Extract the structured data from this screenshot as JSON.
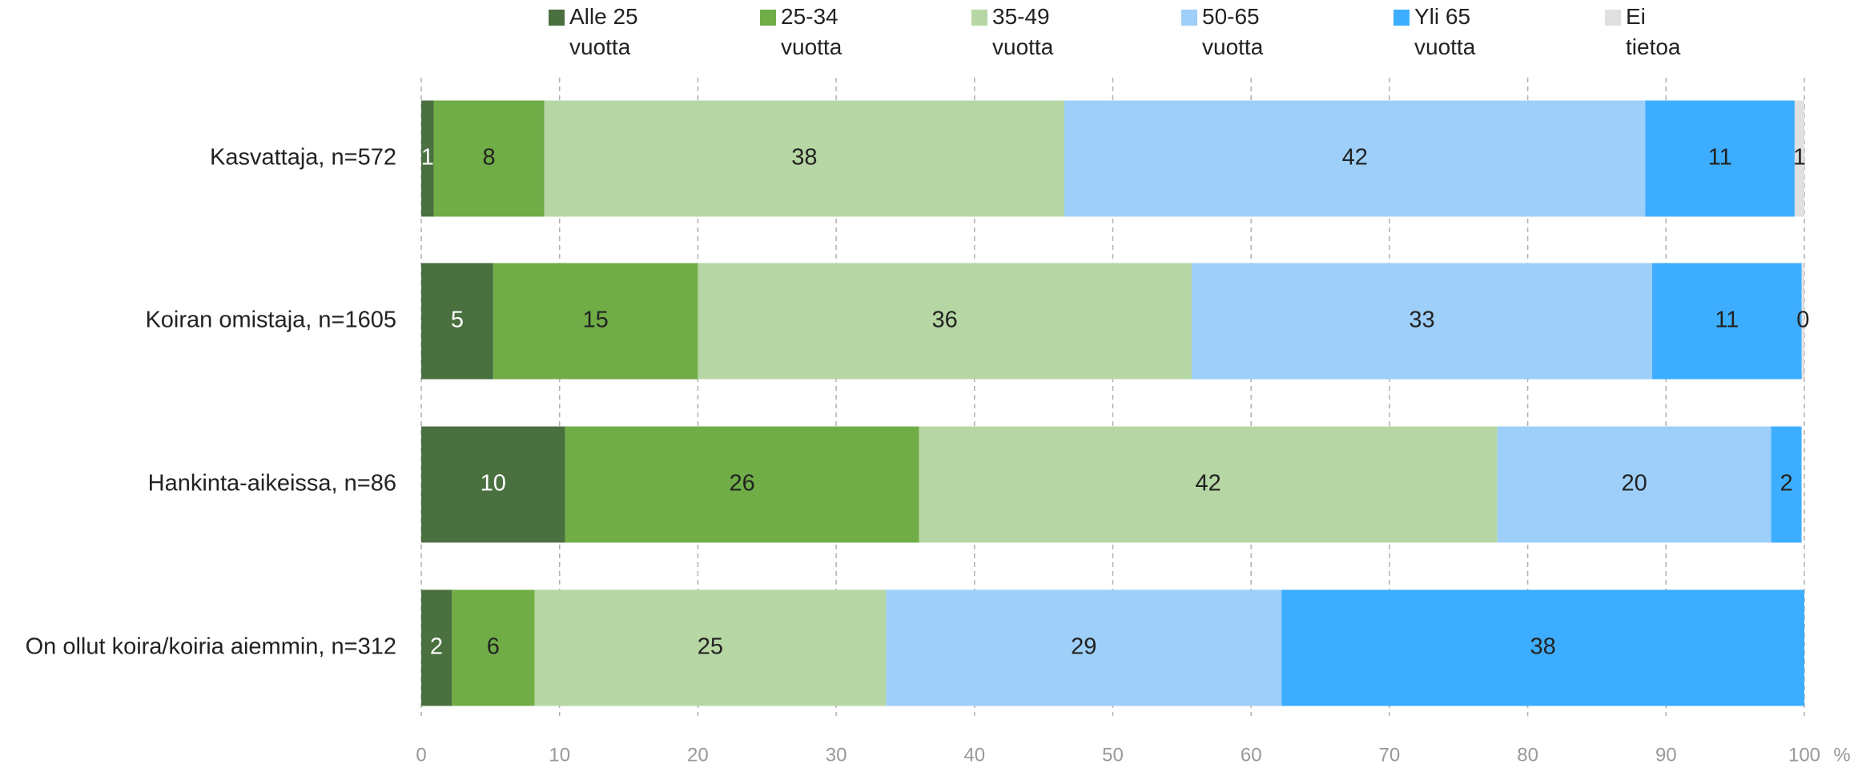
{
  "chart_data": {
    "type": "stacked_barh",
    "categories": [
      "Kasvattaja, n=572",
      "Koiran omistaja, n=1605",
      "Hankinta-aikeissa, n=86",
      "On ollut koira/koiria aiemmin, n=312"
    ],
    "series": [
      {
        "name": "Alle 25 vuotta",
        "color": "#4a7040",
        "values": [
          0.9,
          5.2,
          10.4,
          2.2
        ],
        "value_labels": [
          "1",
          "5",
          "10",
          "2"
        ]
      },
      {
        "name": "25-34 vuotta",
        "color": "#70ad47",
        "values": [
          8.0,
          14.8,
          25.6,
          6.0
        ],
        "value_labels": [
          "8",
          "15",
          "26",
          "6"
        ]
      },
      {
        "name": "35-49 vuotta",
        "color": "#b6d7a3",
        "values": [
          37.6,
          35.7,
          41.8,
          25.4
        ],
        "value_labels": [
          "38",
          "36",
          "42",
          "25"
        ]
      },
      {
        "name": "50-65 vuotta",
        "color": "#9dcff8",
        "values": [
          42.0,
          33.3,
          19.8,
          28.6
        ],
        "value_labels": [
          "42",
          "33",
          "20",
          "29"
        ]
      },
      {
        "name": "Yli 65 vuotta",
        "color": "#3daeff",
        "values": [
          10.8,
          10.8,
          2.2,
          37.8
        ],
        "value_labels": [
          "11",
          "11",
          "2",
          "38"
        ]
      },
      {
        "name": "Ei tietoa",
        "color": "#e0e0e0",
        "values": [
          0.7,
          0.2,
          null,
          null
        ],
        "value_labels": [
          "1",
          "0",
          null,
          null
        ]
      }
    ],
    "xlabel": "%",
    "xlim": [
      0,
      100
    ],
    "xticks": [
      0,
      10,
      20,
      30,
      40,
      50,
      60,
      70,
      80,
      90,
      100
    ],
    "grid": true
  }
}
